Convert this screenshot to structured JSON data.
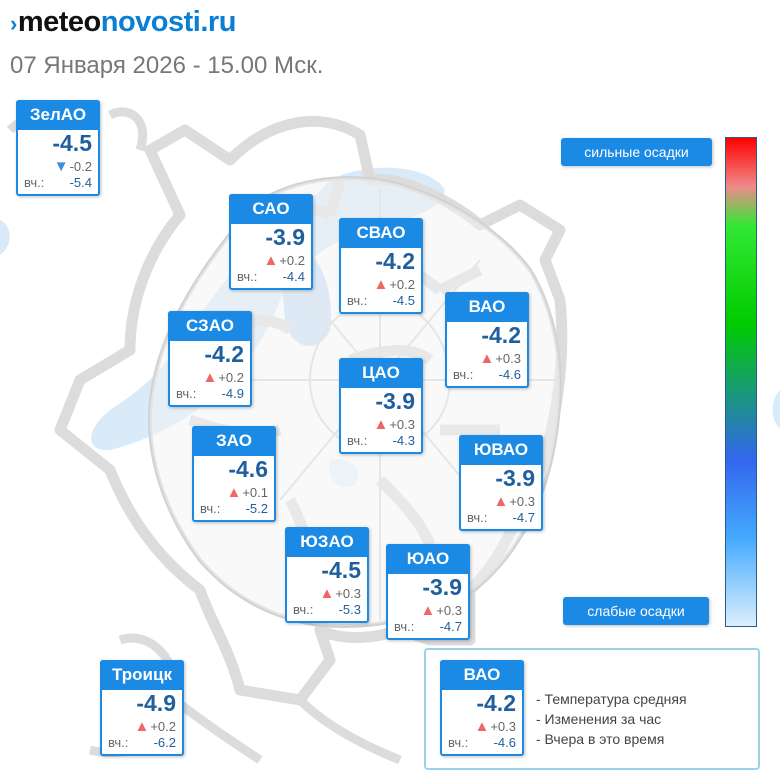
{
  "site": {
    "logo_prefix": "meteo",
    "logo_suffix": "novosti.ru"
  },
  "subtitle": "07 Января 2026 - 15.00 Мск.",
  "yesterday_label": "вч.:",
  "accent_color": "#1a8ae5",
  "districts": [
    {
      "key": "zelao",
      "name": "ЗелАО",
      "temp": "-4.5",
      "trend": "down",
      "change": "-0.2",
      "yesterday": "-5.4"
    },
    {
      "key": "sao",
      "name": "САО",
      "temp": "-3.9",
      "trend": "up",
      "change": "+0.2",
      "yesterday": "-4.4"
    },
    {
      "key": "svao",
      "name": "СВАО",
      "temp": "-4.2",
      "trend": "up",
      "change": "+0.2",
      "yesterday": "-4.5"
    },
    {
      "key": "vao",
      "name": "ВАО",
      "temp": "-4.2",
      "trend": "up",
      "change": "+0.3",
      "yesterday": "-4.6"
    },
    {
      "key": "szao",
      "name": "СЗАО",
      "temp": "-4.2",
      "trend": "up",
      "change": "+0.2",
      "yesterday": "-4.9"
    },
    {
      "key": "cao",
      "name": "ЦАО",
      "temp": "-3.9",
      "trend": "up",
      "change": "+0.3",
      "yesterday": "-4.3"
    },
    {
      "key": "zao",
      "name": "ЗАО",
      "temp": "-4.6",
      "trend": "up",
      "change": "+0.1",
      "yesterday": "-5.2"
    },
    {
      "key": "yuvao",
      "name": "ЮВАО",
      "temp": "-3.9",
      "trend": "up",
      "change": "+0.3",
      "yesterday": "-4.7"
    },
    {
      "key": "yuzao",
      "name": "ЮЗАО",
      "temp": "-4.5",
      "trend": "up",
      "change": "+0.3",
      "yesterday": "-5.3"
    },
    {
      "key": "yuao",
      "name": "ЮАО",
      "temp": "-3.9",
      "trend": "up",
      "change": "+0.3",
      "yesterday": "-4.7"
    },
    {
      "key": "troick",
      "name": "Троицк",
      "temp": "-4.9",
      "trend": "up",
      "change": "+0.2",
      "yesterday": "-6.2"
    }
  ],
  "precip_scale": {
    "top_label": "сильные осадки",
    "bottom_label": "слабые осадки"
  },
  "legend": {
    "example": {
      "name": "ВАО",
      "temp": "-4.2",
      "trend": "up",
      "change": "+0.3",
      "yesterday": "-4.6"
    },
    "lines": [
      "- Температура средняя",
      "- Изменения за час",
      "- Вчера в это время"
    ]
  }
}
